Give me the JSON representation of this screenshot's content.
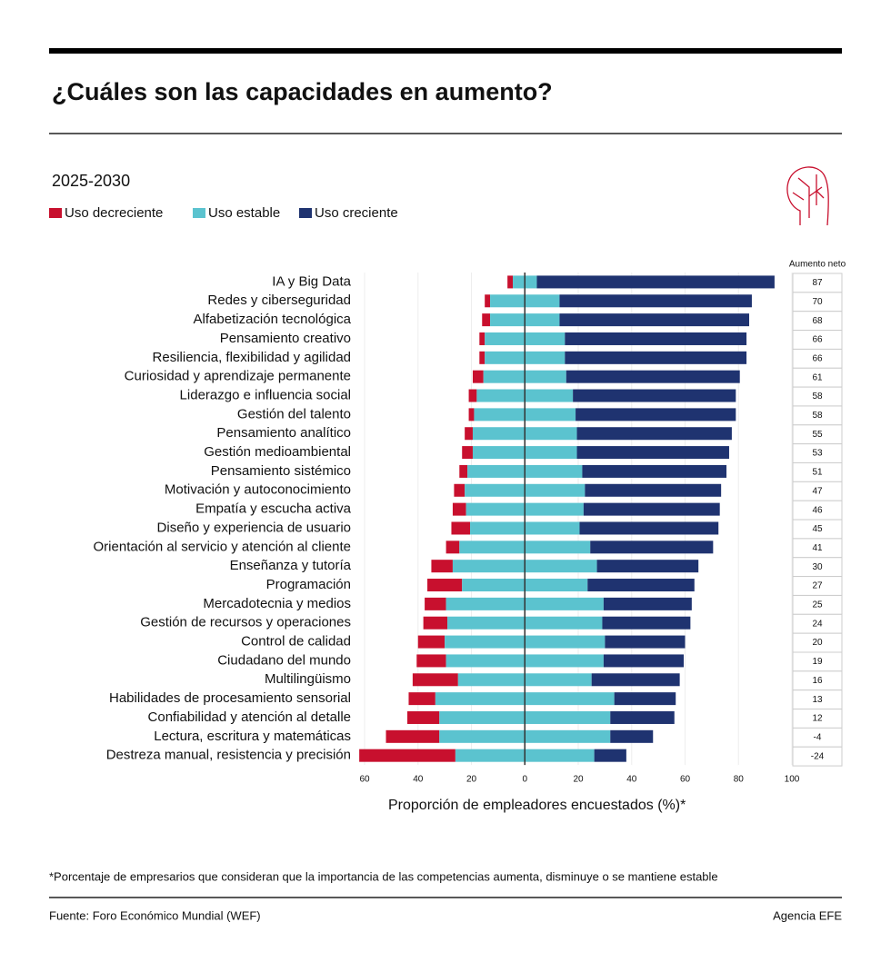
{
  "chart_data": {
    "type": "diverging_bar",
    "title": "¿Cuáles son las capacidades en aumento?",
    "subtitle": "2025-2030",
    "xlabel": "Proporción de empleadores encuestados (%)*",
    "net_label": "Aumento neto",
    "footnote": "*Porcentaje de empresarios que consideran que la importancia de las competencias aumenta, disminuye o se mantiene estable",
    "source": "Fuente: Foro Económico Mundial (WEF)",
    "credit": "Agencia EFE",
    "categories": [
      "IA y Big Data",
      "Redes y ciberseguridad",
      "Alfabetización tecnológica",
      "Pensamiento creativo",
      "Resiliencia, flexibilidad y agilidad",
      "Curiosidad y aprendizaje permanente",
      "Liderazgo e influencia social",
      "Gestión del talento",
      "Pensamiento analítico",
      "Gestión medioambiental",
      "Pensamiento sistémico",
      "Motivación y autoconocimiento",
      "Empatía y escucha activa",
      "Diseño y experiencia de usuario",
      "Orientación al servicio y atención al cliente",
      "Enseñanza y tutoría",
      "Programación",
      "Mercadotecnia y medios",
      "Gestión de recursos y operaciones",
      "Control de calidad",
      "Ciudadano del mundo ",
      "Multilingüismo",
      "Habilidades de procesamiento sensorial",
      "Confiabilidad y atención al detalle",
      "Lectura, escritura y matemáticas",
      "Destreza manual, resistencia y precisión"
    ],
    "series": [
      {
        "name": "Uso decreciente",
        "color": "#c8102e",
        "role": "decrease",
        "values": [
          2,
          2,
          3,
          2,
          2,
          4,
          3,
          2,
          3,
          4,
          3,
          4,
          5,
          7,
          5,
          8,
          13,
          8,
          9,
          10,
          11,
          17,
          10,
          12,
          20,
          36
        ]
      },
      {
        "name": "Uso estable",
        "color": "#5bc3cf",
        "role": "stable",
        "values": [
          9,
          26,
          26,
          30,
          30,
          31,
          36,
          38,
          39,
          39,
          43,
          45,
          44,
          41,
          49,
          54,
          47,
          59,
          58,
          60,
          59,
          50,
          67,
          64,
          64,
          52
        ]
      },
      {
        "name": "Uso creciente",
        "color": "#1f3370",
        "role": "increase",
        "values": [
          89,
          72,
          71,
          68,
          68,
          65,
          61,
          60,
          58,
          57,
          54,
          51,
          51,
          52,
          46,
          38,
          40,
          33,
          33,
          30,
          30,
          33,
          23,
          24,
          16,
          12
        ]
      }
    ],
    "net": [
      87,
      70,
      68,
      66,
      66,
      61,
      58,
      58,
      55,
      53,
      51,
      47,
      46,
      45,
      41,
      30,
      27,
      25,
      24,
      20,
      19,
      16,
      13,
      12,
      -4,
      -24
    ],
    "xlim": [
      -60,
      100
    ],
    "xticks": [
      {
        "value": -60,
        "label": "60"
      },
      {
        "value": -40,
        "label": "40"
      },
      {
        "value": -20,
        "label": "20"
      },
      0,
      20,
      40,
      60,
      80,
      100
    ],
    "grid": true
  }
}
